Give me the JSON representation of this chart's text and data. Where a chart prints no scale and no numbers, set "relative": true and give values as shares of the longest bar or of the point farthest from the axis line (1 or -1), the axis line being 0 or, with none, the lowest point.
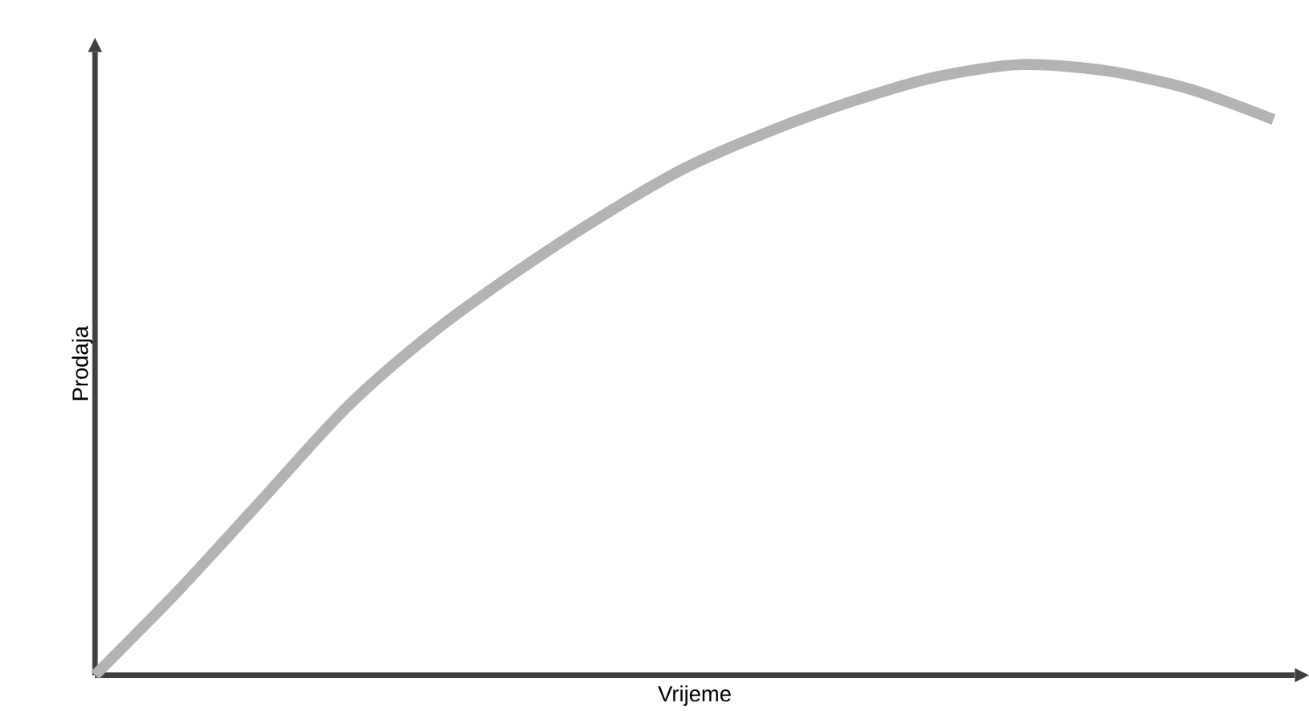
{
  "chart_data": {
    "type": "line",
    "xlabel": "Vrijeme",
    "ylabel": "Prodaja",
    "relative": true,
    "categories": [
      null,
      null,
      null,
      null,
      null,
      null,
      null,
      null,
      null,
      null,
      null,
      null,
      null,
      null,
      null
    ],
    "values": [
      0,
      0.14,
      0.29,
      0.44,
      0.56,
      0.66,
      0.75,
      0.83,
      0.89,
      0.94,
      0.98,
      1.0,
      0.99,
      0.96,
      0.91
    ],
    "color": "#b3b3b3"
  }
}
